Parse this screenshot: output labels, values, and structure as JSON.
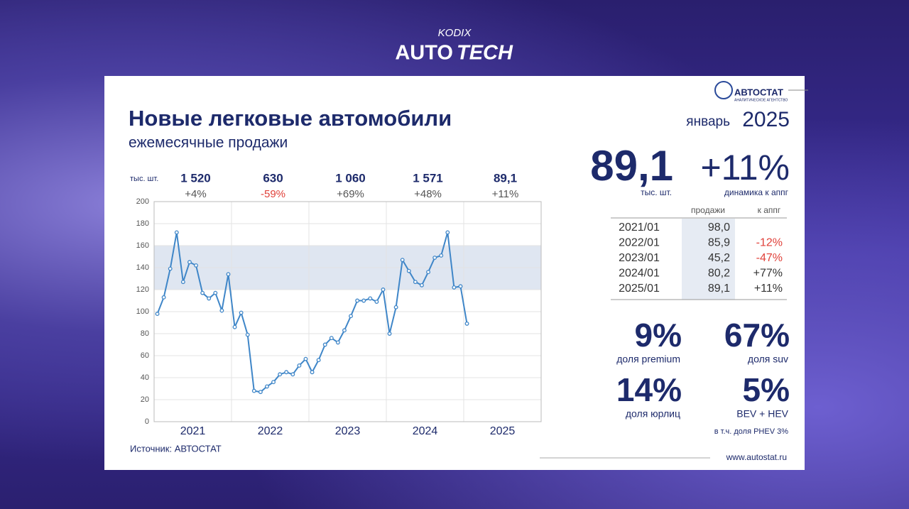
{
  "header": {
    "brand": "KODIX",
    "title_a": "AUTO",
    "title_b": "TECH"
  },
  "logo": {
    "name": "АВТОСТАТ",
    "tagline": "АНАЛИТИЧЕСКОЕ АГЕНТСТВО"
  },
  "chart_data": {
    "type": "line",
    "title": "Новые легковые автомобили",
    "subtitle": "ежемесячные продажи",
    "unit_label": "тыс. шт.",
    "year_labels": [
      "2021",
      "2022",
      "2023",
      "2024",
      "2025"
    ],
    "year_totals": [
      {
        "total": "1 520",
        "change": "+4%"
      },
      {
        "total": "630",
        "change": "-59%"
      },
      {
        "total": "1 060",
        "change": "+69%"
      },
      {
        "total": "1 571",
        "change": "+48%"
      },
      {
        "total": "89,1",
        "change": "+11%"
      }
    ],
    "values": [
      98,
      113,
      139,
      172,
      127,
      145,
      142,
      117,
      112,
      117,
      101,
      134,
      86,
      99,
      79,
      28,
      27,
      32,
      36,
      43,
      45,
      43,
      51,
      57,
      45,
      56,
      70,
      76,
      72,
      83,
      96,
      110,
      110,
      112,
      109,
      120,
      80,
      104,
      147,
      137,
      127,
      124,
      136,
      149,
      151,
      172,
      122,
      123,
      89.1
    ],
    "color": "#3f86c8",
    "band": [
      120,
      160
    ],
    "ylim": [
      0,
      200
    ],
    "yticks": [
      0,
      20,
      40,
      60,
      80,
      100,
      120,
      140,
      160,
      180,
      200
    ],
    "grid": true
  },
  "source": "Источник: АВТОСТАТ",
  "period": {
    "month": "январь",
    "year": "2025"
  },
  "kpis": {
    "sales": {
      "value": "89,1",
      "label": "тыс. шт."
    },
    "growth": {
      "value": "+11%",
      "label": "динамика к аппг"
    }
  },
  "table": {
    "columns": [
      "продажи",
      "к аппг"
    ],
    "rows": [
      [
        "2021/01",
        "98,0",
        null
      ],
      [
        "2022/01",
        "85,9",
        "-12%"
      ],
      [
        "2023/01",
        "45,2",
        "-47%"
      ],
      [
        "2024/01",
        "80,2",
        "+77%"
      ],
      [
        "2025/01",
        "89,1",
        "+11%"
      ]
    ]
  },
  "shares": [
    {
      "value": "9%",
      "label": "доля premium"
    },
    {
      "value": "67%",
      "label": "доля suv"
    },
    {
      "value": "14%",
      "label": "доля юрлиц"
    },
    {
      "value": "5%",
      "label": "BEV + HEV"
    }
  ],
  "phev_note": "в т.ч. доля PHEV 3%",
  "website": "www.autostat.ru"
}
